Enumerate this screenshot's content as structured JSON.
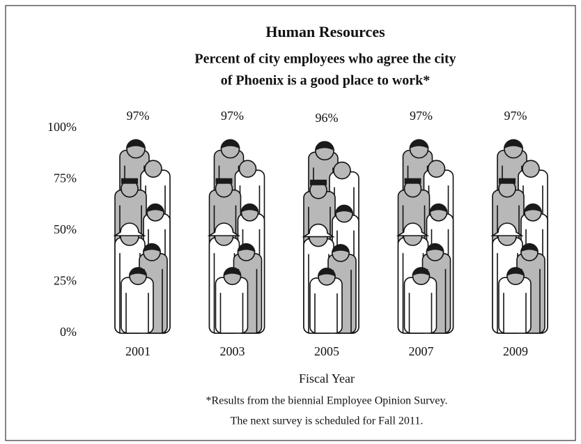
{
  "chart_data": {
    "type": "pictograph",
    "title": "Human Resources",
    "subtitle": [
      "Percent of city employees who agree the city",
      "of Phoenix is a good place to work*"
    ],
    "categories": [
      "2001",
      "2003",
      "2005",
      "2007",
      "2009"
    ],
    "values": [
      97,
      97,
      96,
      97,
      97
    ],
    "value_labels": [
      "97%",
      "97%",
      "96%",
      "97%",
      "97%"
    ],
    "ylim": [
      0,
      100
    ],
    "yticks": [
      {
        "value": 0,
        "label": "0%"
      },
      {
        "value": 25,
        "label": "25%"
      },
      {
        "value": 50,
        "label": "50%"
      },
      {
        "value": 75,
        "label": "75%"
      },
      {
        "value": 100,
        "label": "100%"
      }
    ],
    "xlabel": "Fiscal Year",
    "footnote": [
      "*Results from the biennial Employee Opinion Survey.",
      "The next survey is scheduled for Fall 2011."
    ],
    "colors": {
      "light": "#ffffff",
      "shade": "#b8b8b8",
      "dark": "#1a1a1a"
    }
  }
}
